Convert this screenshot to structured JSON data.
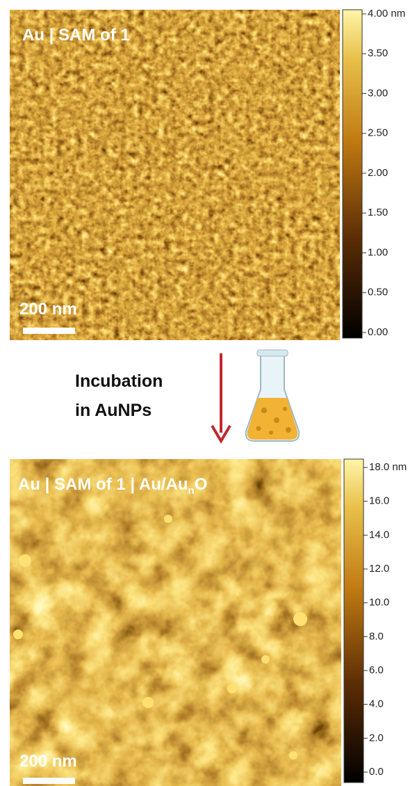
{
  "panels": [
    {
      "label": "Au | SAM of 1",
      "scale_bar": "200 nm",
      "colorbar_ticks": [
        "4.00 nm",
        "3.50",
        "3.00",
        "2.50",
        "2.00",
        "1.50",
        "1.00",
        "0.50",
        "0.00"
      ]
    },
    {
      "label": {
        "main": "Au | SAM of 1 | Au/Au",
        "subscript": "n",
        "suffix": "O"
      },
      "scale_bar": "200 nm",
      "colorbar_ticks": [
        "18.0 nm",
        "16.0",
        "14.0",
        "12.0",
        "10.0",
        "8.0",
        "6.0",
        "4.0",
        "2.0",
        "0.0"
      ]
    }
  ],
  "step": {
    "lines": [
      "Incubation",
      "in AuNPs"
    ]
  }
}
